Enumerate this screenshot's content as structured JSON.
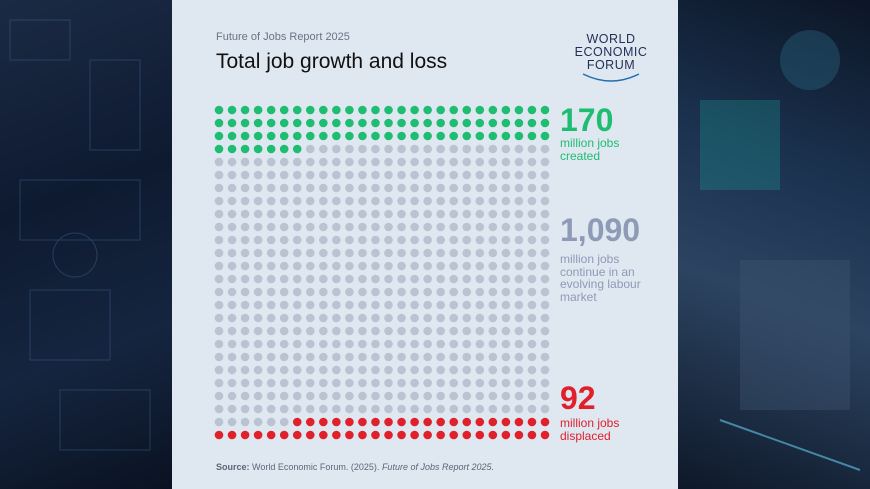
{
  "chart_data": {
    "type": "waffle",
    "subtitle": "Future of Jobs Report 2025",
    "title": "Total job growth and loss",
    "logo": [
      "WORLD",
      "ECONOMIC",
      "FORUM"
    ],
    "categories": [
      "million jobs created",
      "million jobs continue in an evolving labour market",
      "million jobs displaced"
    ],
    "values": [
      170,
      1090,
      92
    ],
    "value_labels": [
      "170",
      "1,090",
      "92"
    ],
    "colors": [
      "#1ebd72",
      "#8d9bb6",
      "#e0202b"
    ],
    "dot_colors": [
      "#1ebd72",
      "#b9c3d1",
      "#e0202b"
    ],
    "source_label": "Source:",
    "source_text": "World Economic Forum. (2025).",
    "source_title": "Future of Jobs Report 2025."
  }
}
